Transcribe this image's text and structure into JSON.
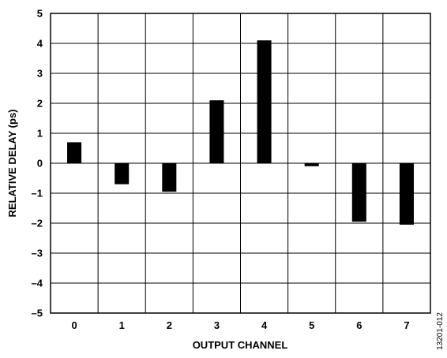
{
  "chart_data": {
    "type": "bar",
    "title": "",
    "xlabel": "OUTPUT CHANNEL",
    "ylabel": "RELATIVE DELAY (ps)",
    "categories": [
      "0",
      "1",
      "2",
      "3",
      "4",
      "5",
      "6",
      "7"
    ],
    "values": [
      0.7,
      -0.7,
      -0.95,
      2.1,
      4.1,
      -0.1,
      -1.95,
      -2.05
    ],
    "ylim": [
      -5,
      5
    ],
    "yticks": [
      "–5",
      "–4",
      "–3",
      "–2",
      "–1",
      "0",
      "1",
      "2",
      "3",
      "4",
      "5"
    ],
    "grid": true,
    "bar_color": "#000000",
    "grid_color": "#000000",
    "figure_id": "13201-012"
  }
}
